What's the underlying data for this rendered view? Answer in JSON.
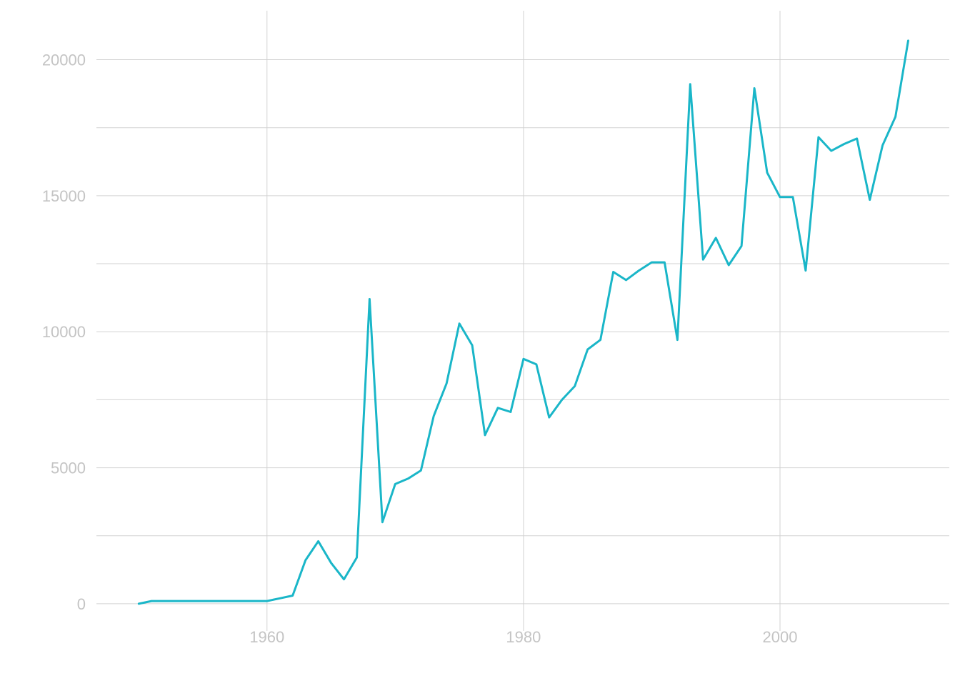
{
  "chart_data": {
    "type": "line",
    "title": "",
    "xlabel": "",
    "ylabel": "",
    "xlim": [
      1946.7,
      2013.2
    ],
    "ylim": [
      -1000,
      21800
    ],
    "grid": true,
    "legend": "none",
    "x_ticks": [
      1960,
      1980,
      2000
    ],
    "y_ticks": [
      0,
      5000,
      10000,
      15000,
      20000
    ],
    "x_minor_grid": [],
    "y_minor_grid": [
      2500,
      7500,
      12500,
      17500
    ],
    "x_tick_labels": [
      "1960",
      "1980",
      "2000"
    ],
    "y_tick_labels": [
      "0",
      "5000",
      "10000",
      "15000",
      "20000"
    ],
    "series": [
      {
        "color": "#1ab6c8",
        "x": [
          1950,
          1951,
          1952,
          1953,
          1954,
          1955,
          1956,
          1957,
          1958,
          1959,
          1960,
          1961,
          1962,
          1963,
          1964,
          1965,
          1966,
          1967,
          1968,
          1969,
          1970,
          1971,
          1972,
          1973,
          1974,
          1975,
          1976,
          1977,
          1978,
          1979,
          1980,
          1981,
          1982,
          1983,
          1984,
          1985,
          1986,
          1987,
          1988,
          1989,
          1990,
          1991,
          1992,
          1993,
          1994,
          1995,
          1996,
          1997,
          1998,
          1999,
          2000,
          2001,
          2002,
          2003,
          2004,
          2005,
          2006,
          2007,
          2008,
          2009,
          2010
        ],
        "y": [
          0,
          100,
          100,
          100,
          100,
          100,
          100,
          100,
          100,
          100,
          100,
          200,
          300,
          1600,
          2300,
          1500,
          900,
          1700,
          11200,
          3000,
          4400,
          4600,
          4900,
          6900,
          8100,
          10300,
          9500,
          6200,
          7200,
          7050,
          9000,
          8800,
          6850,
          7500,
          8000,
          9350,
          9700,
          12200,
          11900,
          12250,
          12550,
          12550,
          9700,
          19100,
          12650,
          13450,
          12450,
          13150,
          18950,
          15850,
          14950,
          14950,
          12250,
          17150,
          16650,
          16900,
          17100,
          14850,
          16850,
          17900,
          20700
        ]
      }
    ]
  }
}
